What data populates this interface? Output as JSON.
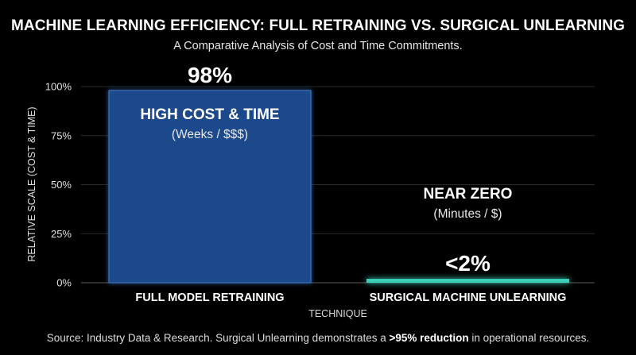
{
  "title": "MACHINE LEARNING EFFICIENCY: FULL RETRAINING VS. SURGICAL UNLEARNING",
  "subtitle": "A Comparative Analysis of Cost and Time Commitments.",
  "source": {
    "prefix": "Source: Industry Data & Research. Surgical Unlearning demonstrates a ",
    "bold": ">95% reduction",
    "suffix": " in operational resources."
  },
  "colors": {
    "background": "#000000",
    "bar_retraining": "#1e4a8c",
    "bar_retraining_edge": "#3f6fb3",
    "bar_unlearning": "#3ad1b8",
    "text": "#ffffff"
  },
  "chart_data": {
    "type": "bar",
    "xlabel": "TECHNIQUE",
    "ylabel": "RELATIVE SCALE (COST & TIME)",
    "ylim": [
      0,
      100
    ],
    "yticks": [
      0,
      25,
      50,
      75,
      100
    ],
    "ytick_labels": [
      "0%",
      "25%",
      "50%",
      "75%",
      "100%"
    ],
    "grid": true,
    "categories": [
      "FULL MODEL RETRAINING",
      "SURGICAL MACHINE UNLEARNING"
    ],
    "values": [
      98,
      2
    ],
    "value_labels": [
      "98%",
      "<2%"
    ],
    "annotations": [
      {
        "headline": "HIGH COST & TIME",
        "detail": "(Weeks / $$$)"
      },
      {
        "headline": "NEAR ZERO",
        "detail": "(Minutes / $)"
      }
    ]
  }
}
